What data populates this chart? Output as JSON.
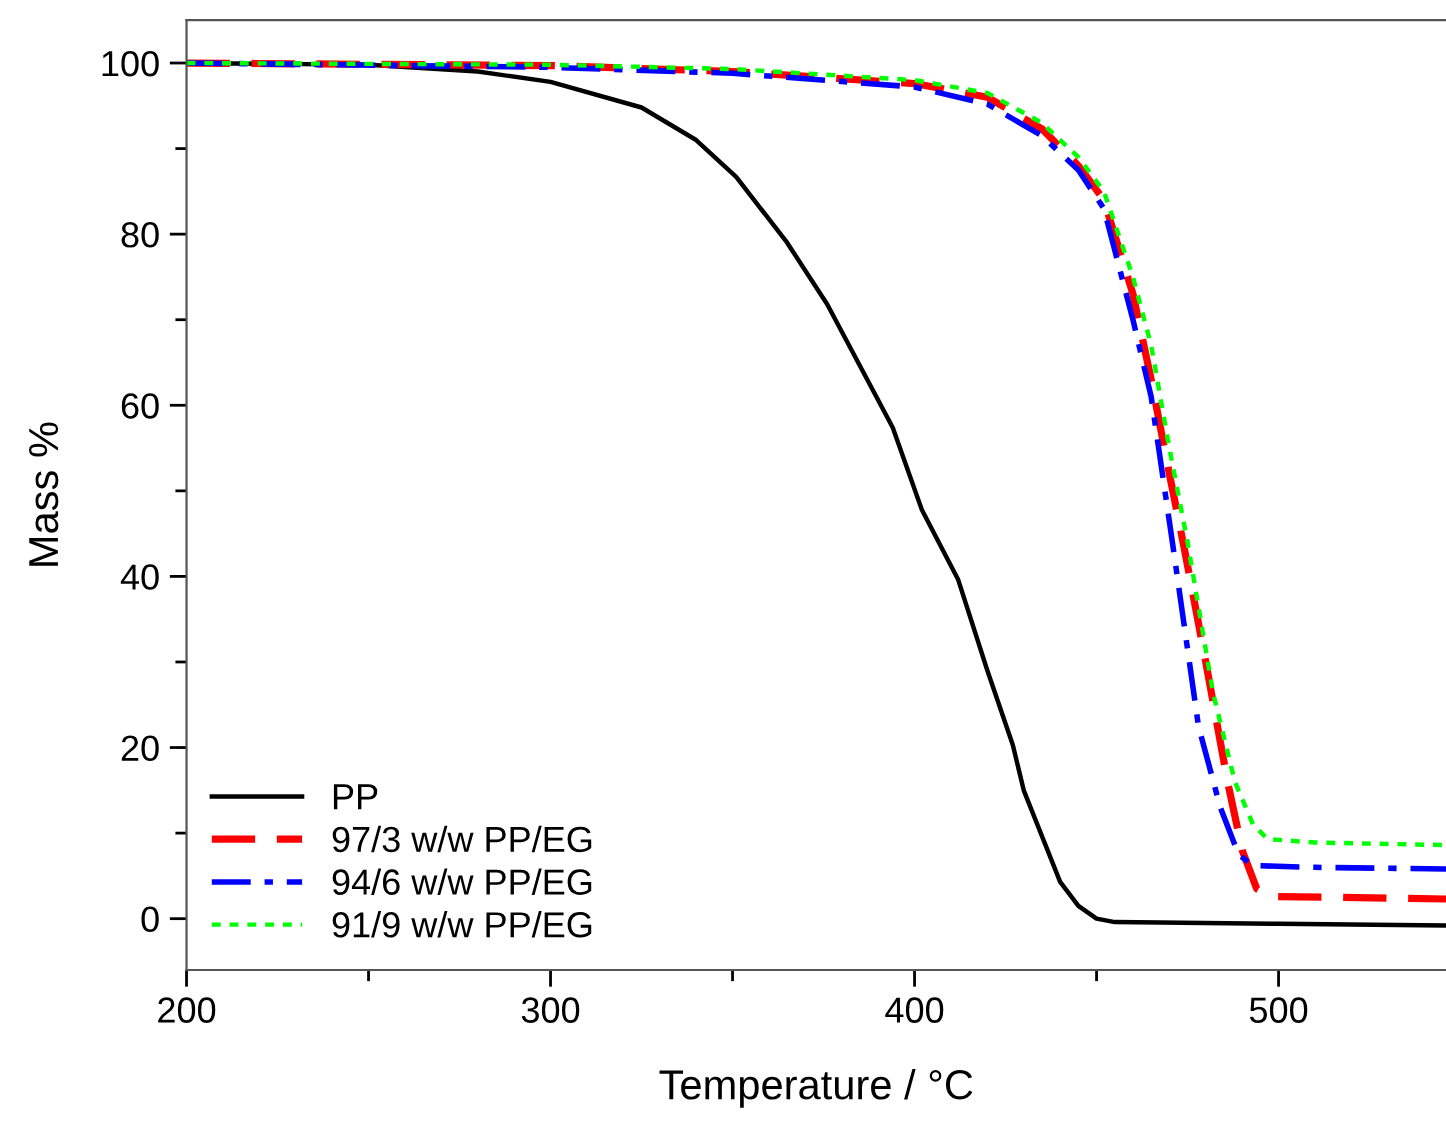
{
  "chart_data": {
    "type": "line",
    "xlabel": "Temperature / °C",
    "ylabel": "Mass %",
    "xlim": [
      200,
      546
    ],
    "ylim": [
      -6,
      105
    ],
    "xticks": [
      200,
      {
        "value": 250,
        "label": null
      },
      300,
      {
        "value": 350,
        "label": null
      },
      400,
      {
        "value": 450,
        "label": null
      },
      500
    ],
    "yticks": [
      0,
      {
        "value": 10,
        "label": null
      },
      20,
      {
        "value": 30,
        "label": null
      },
      40,
      {
        "value": 50,
        "label": null
      },
      60,
      {
        "value": 70,
        "label": null
      },
      80,
      {
        "value": 90,
        "label": null
      },
      100
    ],
    "grid": false,
    "legend": "bottom left",
    "series": [
      {
        "name": "PP",
        "color": "#000000",
        "line_style": "solid",
        "x": [
          200,
          250,
          280,
          300,
          325,
          340,
          351,
          365,
          376,
          394,
          402,
          412,
          420,
          427,
          430,
          440,
          445,
          450,
          455,
          500,
          546
        ],
        "values": [
          100,
          99.8,
          99,
          97.8,
          94.8,
          91,
          86.7,
          79,
          71.8,
          57.4,
          47.8,
          39.6,
          29,
          20.3,
          15,
          4.3,
          1.5,
          0,
          -0.4,
          -0.6,
          -0.8
        ]
      },
      {
        "name": "97/3 w/w PP/EG",
        "color": "#ff0000",
        "line_style": "dashed",
        "x": [
          200,
          300,
          350,
          400,
          420,
          435,
          445,
          452,
          460,
          465,
          470,
          474,
          480,
          486,
          490,
          494,
          498,
          546
        ],
        "values": [
          100,
          99.7,
          99,
          97.6,
          96,
          92.3,
          88,
          84,
          73,
          63,
          52,
          43.5,
          30,
          16,
          8,
          3.5,
          2.6,
          2.3
        ]
      },
      {
        "name": "94/6 w/w PP/EG",
        "color": "#0000ff",
        "line_style": "dashdot",
        "x": [
          200,
          300,
          350,
          400,
          420,
          435,
          445,
          452,
          460,
          465,
          471,
          478,
          484,
          489,
          493,
          510,
          546
        ],
        "values": [
          100,
          99.5,
          98.8,
          97.2,
          95.2,
          91.5,
          87.5,
          83,
          70,
          61,
          43.5,
          22.5,
          13,
          7.5,
          6.2,
          6,
          5.8
        ]
      },
      {
        "name": "91/9 w/w PP/EG",
        "color": "#00ff00",
        "line_style": "dotted",
        "x": [
          200,
          300,
          350,
          400,
          420,
          435,
          445,
          452,
          460,
          465,
          470,
          475,
          482,
          488,
          493,
          497,
          510,
          546
        ],
        "values": [
          100,
          99.8,
          99.3,
          98,
          96.5,
          93,
          89,
          85,
          75,
          67,
          55,
          44,
          26.4,
          16,
          11,
          9.3,
          8.9,
          8.6
        ]
      }
    ]
  }
}
